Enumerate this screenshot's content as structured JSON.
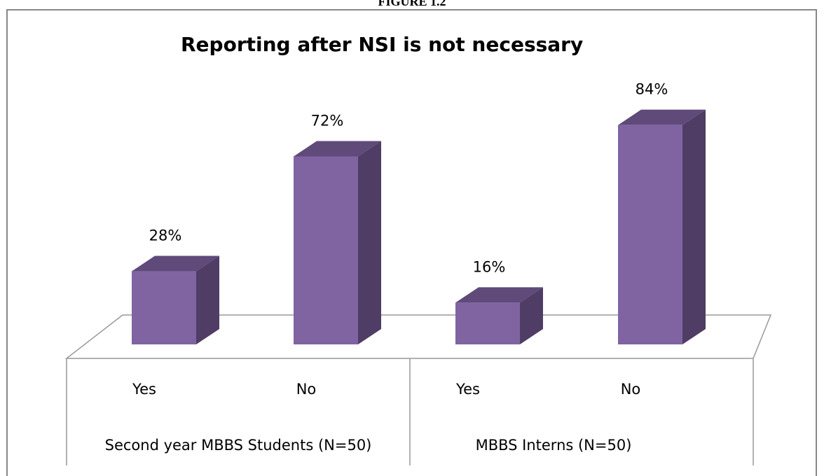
{
  "figure_label": "FIGURE 1.2",
  "chart_data": {
    "type": "bar3d",
    "title": "Reporting after NSI is not necessary",
    "categories": [
      "Yes",
      "No",
      "Yes",
      "No"
    ],
    "groups": [
      "Second year MBBS Students (N=50)",
      "MBBS Interns (N=50)"
    ],
    "values": [
      28,
      72,
      16,
      84
    ],
    "value_labels": [
      "28%",
      "72%",
      "16%",
      "84%"
    ],
    "color": "#8064a2"
  }
}
